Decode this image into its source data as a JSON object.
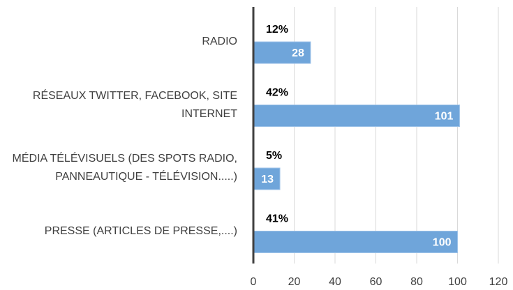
{
  "chart_data": {
    "type": "bar",
    "orientation": "horizontal",
    "categories": [
      "RADIO",
      "RÉSEAUX TWITTER, FACEBOOK, SITE INTERNET",
      "MÉDIA TÉLÉVISUELS (DES SPOTS RADIO, PANNEAUTIQUE - TÉLÉVISION.....)",
      "PRESSE (ARTICLES DE PRESSE,....)"
    ],
    "series": [
      {
        "values": [
          12,
          42,
          5,
          41
        ],
        "value_labels": [
          "12%",
          "42%",
          "5%",
          "41%"
        ]
      },
      {
        "color": "#6fa5da",
        "values": [
          28,
          101,
          13,
          100
        ]
      }
    ],
    "xlim": [
      0,
      120
    ],
    "xticks": [
      0,
      20,
      40,
      60,
      80,
      100,
      120
    ],
    "grid": true
  }
}
